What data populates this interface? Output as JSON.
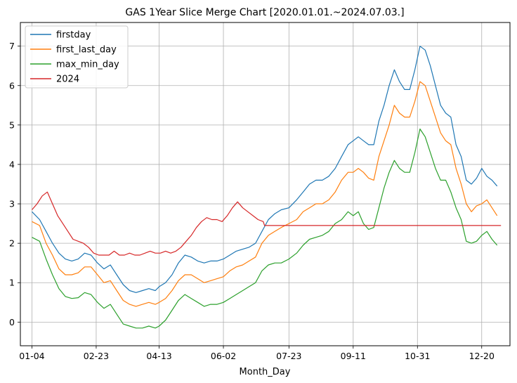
{
  "chart_data": {
    "type": "line",
    "title": "GAS 1Year Slice Merge Chart [2020.01.01.~2024.07.03.]",
    "xlabel": "Month_Day",
    "ylabel": "",
    "x_ticks": [
      {
        "day": 4,
        "label": "01-04"
      },
      {
        "day": 54,
        "label": "02-23"
      },
      {
        "day": 103,
        "label": "04-13"
      },
      {
        "day": 153,
        "label": "06-02"
      },
      {
        "day": 204,
        "label": "07-23"
      },
      {
        "day": 254,
        "label": "09-11"
      },
      {
        "day": 304,
        "label": "10-31"
      },
      {
        "day": 354,
        "label": "12-20"
      }
    ],
    "xlim": [
      -5,
      376
    ],
    "ylim": [
      -0.6,
      7.6
    ],
    "y_ticks": [
      0,
      1,
      2,
      3,
      4,
      5,
      6,
      7
    ],
    "grid": true,
    "legend_position": "top-left",
    "series": [
      {
        "name": "firstday",
        "color": "#1f77b4",
        "points": [
          [
            4,
            2.8
          ],
          [
            10,
            2.6
          ],
          [
            15,
            2.3
          ],
          [
            20,
            2.0
          ],
          [
            25,
            1.75
          ],
          [
            30,
            1.6
          ],
          [
            35,
            1.55
          ],
          [
            40,
            1.6
          ],
          [
            45,
            1.75
          ],
          [
            50,
            1.7
          ],
          [
            55,
            1.5
          ],
          [
            60,
            1.35
          ],
          [
            65,
            1.45
          ],
          [
            70,
            1.2
          ],
          [
            75,
            0.95
          ],
          [
            80,
            0.8
          ],
          [
            85,
            0.75
          ],
          [
            90,
            0.8
          ],
          [
            95,
            0.85
          ],
          [
            100,
            0.8
          ],
          [
            103,
            0.9
          ],
          [
            108,
            1.0
          ],
          [
            113,
            1.2
          ],
          [
            118,
            1.5
          ],
          [
            123,
            1.7
          ],
          [
            128,
            1.65
          ],
          [
            133,
            1.55
          ],
          [
            138,
            1.5
          ],
          [
            143,
            1.55
          ],
          [
            148,
            1.55
          ],
          [
            153,
            1.6
          ],
          [
            158,
            1.7
          ],
          [
            163,
            1.8
          ],
          [
            168,
            1.85
          ],
          [
            173,
            1.9
          ],
          [
            178,
            2.0
          ],
          [
            183,
            2.3
          ],
          [
            188,
            2.6
          ],
          [
            193,
            2.75
          ],
          [
            198,
            2.85
          ],
          [
            204,
            2.9
          ],
          [
            210,
            3.1
          ],
          [
            215,
            3.3
          ],
          [
            220,
            3.5
          ],
          [
            225,
            3.6
          ],
          [
            230,
            3.6
          ],
          [
            235,
            3.7
          ],
          [
            240,
            3.9
          ],
          [
            245,
            4.2
          ],
          [
            250,
            4.5
          ],
          [
            254,
            4.6
          ],
          [
            258,
            4.7
          ],
          [
            262,
            4.6
          ],
          [
            266,
            4.5
          ],
          [
            270,
            4.5
          ],
          [
            274,
            5.1
          ],
          [
            278,
            5.5
          ],
          [
            282,
            6.0
          ],
          [
            286,
            6.4
          ],
          [
            290,
            6.1
          ],
          [
            294,
            5.9
          ],
          [
            298,
            5.9
          ],
          [
            302,
            6.4
          ],
          [
            306,
            7.0
          ],
          [
            310,
            6.9
          ],
          [
            314,
            6.5
          ],
          [
            318,
            6.0
          ],
          [
            322,
            5.5
          ],
          [
            326,
            5.3
          ],
          [
            330,
            5.2
          ],
          [
            334,
            4.5
          ],
          [
            338,
            4.2
          ],
          [
            342,
            3.6
          ],
          [
            346,
            3.5
          ],
          [
            350,
            3.65
          ],
          [
            354,
            3.9
          ],
          [
            358,
            3.7
          ],
          [
            362,
            3.6
          ],
          [
            366,
            3.45
          ]
        ]
      },
      {
        "name": "first_last_day",
        "color": "#ff7f0e",
        "points": [
          [
            4,
            2.55
          ],
          [
            10,
            2.45
          ],
          [
            15,
            2.0
          ],
          [
            20,
            1.7
          ],
          [
            25,
            1.35
          ],
          [
            30,
            1.2
          ],
          [
            35,
            1.2
          ],
          [
            40,
            1.25
          ],
          [
            45,
            1.4
          ],
          [
            50,
            1.4
          ],
          [
            55,
            1.2
          ],
          [
            60,
            1.0
          ],
          [
            65,
            1.05
          ],
          [
            70,
            0.8
          ],
          [
            75,
            0.55
          ],
          [
            80,
            0.45
          ],
          [
            85,
            0.4
          ],
          [
            90,
            0.45
          ],
          [
            95,
            0.5
          ],
          [
            100,
            0.45
          ],
          [
            103,
            0.5
          ],
          [
            108,
            0.6
          ],
          [
            113,
            0.8
          ],
          [
            118,
            1.05
          ],
          [
            123,
            1.2
          ],
          [
            128,
            1.2
          ],
          [
            133,
            1.1
          ],
          [
            138,
            1.0
          ],
          [
            143,
            1.05
          ],
          [
            148,
            1.1
          ],
          [
            153,
            1.15
          ],
          [
            158,
            1.3
          ],
          [
            163,
            1.4
          ],
          [
            168,
            1.45
          ],
          [
            173,
            1.55
          ],
          [
            178,
            1.65
          ],
          [
            183,
            2.0
          ],
          [
            188,
            2.2
          ],
          [
            193,
            2.3
          ],
          [
            198,
            2.4
          ],
          [
            204,
            2.5
          ],
          [
            210,
            2.6
          ],
          [
            215,
            2.8
          ],
          [
            220,
            2.9
          ],
          [
            225,
            3.0
          ],
          [
            230,
            3.0
          ],
          [
            235,
            3.1
          ],
          [
            240,
            3.3
          ],
          [
            245,
            3.6
          ],
          [
            250,
            3.8
          ],
          [
            254,
            3.8
          ],
          [
            258,
            3.9
          ],
          [
            262,
            3.8
          ],
          [
            266,
            3.65
          ],
          [
            270,
            3.6
          ],
          [
            274,
            4.2
          ],
          [
            278,
            4.6
          ],
          [
            282,
            5.0
          ],
          [
            286,
            5.5
          ],
          [
            290,
            5.3
          ],
          [
            294,
            5.2
          ],
          [
            298,
            5.2
          ],
          [
            302,
            5.6
          ],
          [
            306,
            6.1
          ],
          [
            310,
            6.0
          ],
          [
            314,
            5.6
          ],
          [
            318,
            5.2
          ],
          [
            322,
            4.8
          ],
          [
            326,
            4.6
          ],
          [
            330,
            4.5
          ],
          [
            334,
            3.9
          ],
          [
            338,
            3.5
          ],
          [
            342,
            3.0
          ],
          [
            346,
            2.8
          ],
          [
            350,
            2.95
          ],
          [
            354,
            3.0
          ],
          [
            358,
            3.1
          ],
          [
            362,
            2.9
          ],
          [
            366,
            2.7
          ]
        ]
      },
      {
        "name": "max_min_day",
        "color": "#2ca02c",
        "points": [
          [
            4,
            2.15
          ],
          [
            10,
            2.05
          ],
          [
            15,
            1.6
          ],
          [
            20,
            1.2
          ],
          [
            25,
            0.85
          ],
          [
            30,
            0.65
          ],
          [
            35,
            0.6
          ],
          [
            40,
            0.62
          ],
          [
            45,
            0.75
          ],
          [
            50,
            0.7
          ],
          [
            55,
            0.5
          ],
          [
            60,
            0.35
          ],
          [
            65,
            0.45
          ],
          [
            70,
            0.2
          ],
          [
            75,
            -0.05
          ],
          [
            80,
            -0.1
          ],
          [
            85,
            -0.15
          ],
          [
            90,
            -0.15
          ],
          [
            95,
            -0.1
          ],
          [
            100,
            -0.15
          ],
          [
            103,
            -0.1
          ],
          [
            108,
            0.05
          ],
          [
            113,
            0.3
          ],
          [
            118,
            0.55
          ],
          [
            123,
            0.7
          ],
          [
            128,
            0.6
          ],
          [
            133,
            0.5
          ],
          [
            138,
            0.4
          ],
          [
            143,
            0.45
          ],
          [
            148,
            0.45
          ],
          [
            153,
            0.5
          ],
          [
            158,
            0.6
          ],
          [
            163,
            0.7
          ],
          [
            168,
            0.8
          ],
          [
            173,
            0.9
          ],
          [
            178,
            1.0
          ],
          [
            183,
            1.3
          ],
          [
            188,
            1.45
          ],
          [
            193,
            1.5
          ],
          [
            198,
            1.5
          ],
          [
            204,
            1.6
          ],
          [
            210,
            1.75
          ],
          [
            215,
            1.95
          ],
          [
            220,
            2.1
          ],
          [
            225,
            2.15
          ],
          [
            230,
            2.2
          ],
          [
            235,
            2.3
          ],
          [
            240,
            2.5
          ],
          [
            245,
            2.6
          ],
          [
            250,
            2.8
          ],
          [
            254,
            2.7
          ],
          [
            258,
            2.8
          ],
          [
            262,
            2.5
          ],
          [
            266,
            2.35
          ],
          [
            270,
            2.4
          ],
          [
            274,
            2.9
          ],
          [
            278,
            3.4
          ],
          [
            282,
            3.8
          ],
          [
            286,
            4.1
          ],
          [
            290,
            3.9
          ],
          [
            294,
            3.8
          ],
          [
            298,
            3.8
          ],
          [
            302,
            4.3
          ],
          [
            306,
            4.9
          ],
          [
            310,
            4.7
          ],
          [
            314,
            4.3
          ],
          [
            318,
            3.9
          ],
          [
            322,
            3.6
          ],
          [
            326,
            3.6
          ],
          [
            330,
            3.3
          ],
          [
            334,
            2.9
          ],
          [
            338,
            2.6
          ],
          [
            342,
            2.05
          ],
          [
            346,
            2.0
          ],
          [
            350,
            2.05
          ],
          [
            354,
            2.2
          ],
          [
            358,
            2.3
          ],
          [
            362,
            2.1
          ],
          [
            366,
            1.95
          ]
        ]
      },
      {
        "name": "2024",
        "color": "#d62728",
        "points": [
          [
            4,
            2.85
          ],
          [
            8,
            3.0
          ],
          [
            12,
            3.2
          ],
          [
            16,
            3.3
          ],
          [
            20,
            3.0
          ],
          [
            24,
            2.7
          ],
          [
            28,
            2.5
          ],
          [
            32,
            2.3
          ],
          [
            36,
            2.1
          ],
          [
            40,
            2.05
          ],
          [
            44,
            2.0
          ],
          [
            48,
            1.9
          ],
          [
            52,
            1.75
          ],
          [
            56,
            1.7
          ],
          [
            60,
            1.7
          ],
          [
            64,
            1.7
          ],
          [
            68,
            1.8
          ],
          [
            72,
            1.7
          ],
          [
            76,
            1.7
          ],
          [
            80,
            1.75
          ],
          [
            84,
            1.7
          ],
          [
            88,
            1.7
          ],
          [
            92,
            1.75
          ],
          [
            96,
            1.8
          ],
          [
            100,
            1.75
          ],
          [
            104,
            1.75
          ],
          [
            108,
            1.8
          ],
          [
            112,
            1.75
          ],
          [
            116,
            1.8
          ],
          [
            120,
            1.9
          ],
          [
            124,
            2.05
          ],
          [
            128,
            2.2
          ],
          [
            132,
            2.4
          ],
          [
            136,
            2.55
          ],
          [
            140,
            2.65
          ],
          [
            144,
            2.6
          ],
          [
            148,
            2.6
          ],
          [
            152,
            2.55
          ],
          [
            156,
            2.7
          ],
          [
            160,
            2.9
          ],
          [
            164,
            3.05
          ],
          [
            168,
            2.9
          ],
          [
            172,
            2.8
          ],
          [
            176,
            2.7
          ],
          [
            180,
            2.6
          ],
          [
            184,
            2.55
          ],
          [
            185,
            2.45
          ],
          [
            369,
            2.45
          ]
        ]
      }
    ]
  }
}
